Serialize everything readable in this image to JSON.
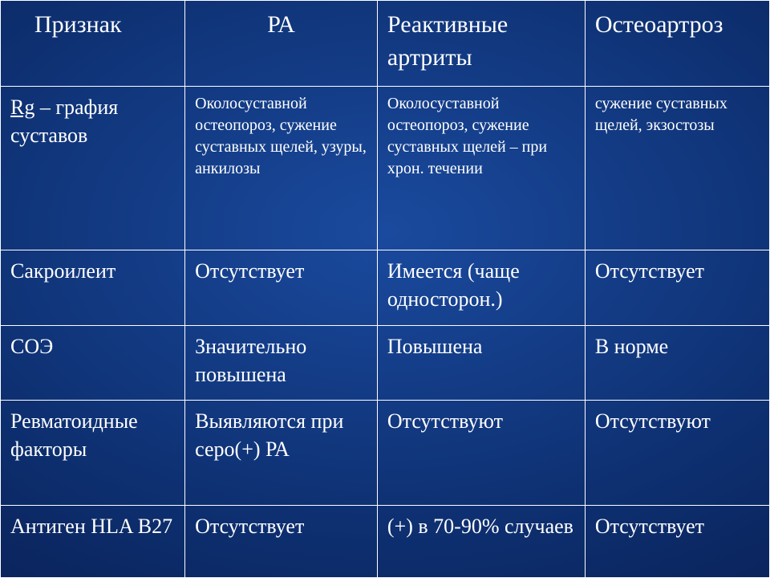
{
  "table": {
    "columns": [
      "Признак",
      "РА",
      "Реактивные артриты",
      "Остеоартроз"
    ],
    "rows": [
      {
        "label_html": "<span class='underline'>Rg</span> – графия суставов",
        "ra": "Околосуставной остеопороз, сужение суставных щелей, узуры, анкилозы",
        "react": "Околосуставной остеопороз, сужение суставных щелей – при хрон. течении",
        "osteo": "сужение суставных щелей, экзостозы",
        "small": true
      },
      {
        "label": "Сакроилеит",
        "ra": "Отсутствует",
        "react": "Имеется (чаще односторон.)",
        "osteo": "Отсутствует"
      },
      {
        "label": "СОЭ",
        "ra": "Значительно повышена",
        "react": "Повышена",
        "osteo": "В норме"
      },
      {
        "label": "Ревматоидные факторы",
        "ra": "Выявляются при серо(+) РА",
        "react": "Отсутствуют",
        "osteo": "Отсутствуют"
      },
      {
        "label": "Антиген HLA B27",
        "ra": "Отсутствует",
        "react": "(+) в 70-90% случаев",
        "osteo": "Отсутствует"
      }
    ],
    "colors": {
      "text": "#ffffff",
      "border": "#ffffff",
      "bg_gradient_center": "#1a4a9e",
      "bg_gradient_edge": "#05123a"
    },
    "fonts": {
      "family": "Times New Roman",
      "header_size_pt": 30,
      "rowlabel_size_pt": 26,
      "cell_size_pt": 26,
      "small_size_pt": 20
    }
  }
}
